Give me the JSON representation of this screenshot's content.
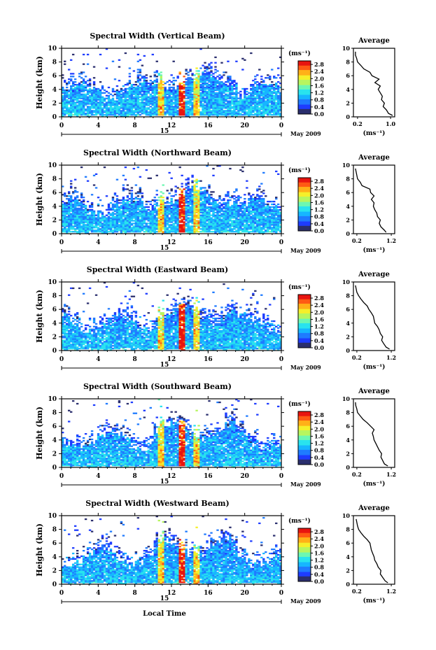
{
  "colors": {
    "colormap": [
      "#2b2f6e",
      "#1e3cff",
      "#1f7bff",
      "#17b6ff",
      "#29e3ee",
      "#6cf7b2",
      "#b7f55f",
      "#f5ef2a",
      "#ffb018",
      "#ff5a14",
      "#e8150f"
    ],
    "line": "#000000",
    "background": "#ffffff"
  },
  "panels_common": {
    "ylabel": "Height (km)",
    "x_ticks": [
      "0",
      "4",
      "8",
      "12",
      "16",
      "20",
      "0"
    ],
    "day_label": "15",
    "date_label": "May 2009",
    "unit_label": "(ms⁻¹)",
    "colorbar_ticks": [
      "2.8",
      "2.4",
      "2.0",
      "1.6",
      "1.2",
      "0.8",
      "0.4",
      "0.0"
    ],
    "avg_title": "Average",
    "avg_xlabel": "(ms⁻¹)"
  },
  "xlabel_bottom": "Local Time",
  "chart_data": [
    {
      "type": "heatmap",
      "title": "Spectral Width (Vertical Beam)",
      "ylabel": "Height (km)",
      "xlim": [
        0,
        24
      ],
      "ylim": [
        0,
        10
      ],
      "y_ticks": [
        "0",
        "2",
        "4",
        "6",
        "8",
        "10"
      ],
      "colorbar": {
        "label": "(ms⁻¹)",
        "range": [
          0.0,
          3.0
        ],
        "ticks": [
          "2.8",
          "2.4",
          "2.0",
          "1.6",
          "1.2",
          "0.8",
          "0.4",
          "0.0"
        ]
      },
      "average_profile": {
        "title": "Average",
        "xlabel": "(ms⁻¹)",
        "x_ticks": [
          "0.2",
          "1.0"
        ],
        "xlim": [
          0.1,
          1.1
        ],
        "y_ticks": [
          "0",
          "2",
          "4",
          "6",
          "8",
          "10"
        ],
        "height_km": [
          0.2,
          0.5,
          1,
          1.5,
          2,
          2.5,
          3,
          3.5,
          4,
          4.5,
          5,
          5.5,
          6,
          6.5,
          7,
          7.5,
          8,
          8.5,
          9,
          9.5
        ],
        "values": [
          1.05,
          0.95,
          0.9,
          0.82,
          0.85,
          0.78,
          0.8,
          0.75,
          0.7,
          0.75,
          0.62,
          0.72,
          0.55,
          0.5,
          0.35,
          0.28,
          0.2,
          0.18,
          0.15,
          0.15
        ]
      }
    },
    {
      "type": "heatmap",
      "title": "Spectral Width (Northward Beam)",
      "ylabel": "Height (km)",
      "xlim": [
        0,
        24
      ],
      "ylim": [
        0,
        10
      ],
      "y_ticks": [
        "0",
        "2",
        "4",
        "6",
        "8",
        "10"
      ],
      "colorbar": {
        "label": "(ms⁻¹)",
        "range": [
          0.0,
          3.0
        ],
        "ticks": [
          "2.8",
          "2.4",
          "2.0",
          "1.6",
          "1.2",
          "0.8",
          "0.4",
          "0.0"
        ]
      },
      "average_profile": {
        "title": "Average",
        "xlabel": "(ms⁻¹)",
        "x_ticks": [
          "0.2",
          "1.2"
        ],
        "xlim": [
          0.1,
          1.3
        ],
        "y_ticks": [
          "0",
          "2",
          "4",
          "6",
          "8",
          "10"
        ],
        "height_km": [
          0.2,
          0.5,
          1,
          1.5,
          2,
          2.5,
          3,
          3.5,
          4,
          4.5,
          5,
          5.5,
          6,
          6.5,
          7,
          7.5,
          8,
          8.5,
          9,
          9.5
        ],
        "values": [
          1.05,
          1.0,
          0.9,
          0.85,
          0.88,
          0.8,
          0.78,
          0.72,
          0.68,
          0.7,
          0.62,
          0.7,
          0.6,
          0.58,
          0.35,
          0.3,
          0.22,
          0.2,
          0.18,
          0.16
        ]
      }
    },
    {
      "type": "heatmap",
      "title": "Spectral Width (Eastward Beam)",
      "ylabel": "Height (km)",
      "xlim": [
        0,
        24
      ],
      "ylim": [
        0,
        10
      ],
      "y_ticks": [
        "0",
        "2",
        "4",
        "6",
        "8",
        "10"
      ],
      "colorbar": {
        "label": "(ms⁻¹)",
        "range": [
          0.0,
          3.0
        ],
        "ticks": [
          "2.8",
          "2.4",
          "2.0",
          "1.6",
          "1.2",
          "0.8",
          "0.4",
          "0.0"
        ]
      },
      "average_profile": {
        "title": "Average",
        "xlabel": "(ms⁻¹)",
        "x_ticks": [
          "0.2",
          "1.2"
        ],
        "xlim": [
          0.1,
          1.3
        ],
        "y_ticks": [
          "0",
          "2",
          "4",
          "6",
          "8",
          "10"
        ],
        "height_km": [
          0.2,
          0.5,
          1,
          1.5,
          2,
          2.5,
          3,
          3.5,
          4,
          4.5,
          5,
          5.5,
          6,
          6.5,
          7,
          7.5,
          8,
          8.5,
          9,
          9.5
        ],
        "values": [
          1.15,
          1.05,
          0.98,
          0.92,
          0.95,
          0.88,
          0.85,
          0.8,
          0.72,
          0.7,
          0.68,
          0.62,
          0.55,
          0.5,
          0.4,
          0.32,
          0.25,
          0.2,
          0.18,
          0.16
        ]
      }
    },
    {
      "type": "heatmap",
      "title": "Spectral Width (Southward Beam)",
      "ylabel": "Height (km)",
      "xlim": [
        0,
        24
      ],
      "ylim": [
        0,
        10
      ],
      "y_ticks": [
        "0",
        "2",
        "4",
        "6",
        "8",
        "10"
      ],
      "colorbar": {
        "label": "(ms⁻¹)",
        "range": [
          0.0,
          3.0
        ],
        "ticks": [
          "2.8",
          "2.4",
          "2.0",
          "1.6",
          "1.2",
          "0.8",
          "0.4",
          "0.0"
        ]
      },
      "average_profile": {
        "title": "Average",
        "xlabel": "(ms⁻¹)",
        "x_ticks": [
          "0.2",
          "1.2"
        ],
        "xlim": [
          0.1,
          1.3
        ],
        "y_ticks": [
          "0",
          "2",
          "4",
          "6",
          "8",
          "10"
        ],
        "height_km": [
          0.2,
          0.5,
          1,
          1.5,
          2,
          2.5,
          3,
          3.5,
          4,
          4.5,
          5,
          5.5,
          6,
          6.5,
          7,
          7.5,
          8,
          8.5,
          9,
          9.5
        ],
        "values": [
          1.1,
          1.0,
          0.95,
          0.9,
          0.92,
          0.85,
          0.8,
          0.75,
          0.7,
          0.68,
          0.65,
          0.7,
          0.6,
          0.5,
          0.38,
          0.3,
          0.22,
          0.2,
          0.17,
          0.16
        ]
      }
    },
    {
      "type": "heatmap",
      "title": "Spectral Width (Westward Beam)",
      "ylabel": "Height (km)",
      "xlim": [
        0,
        24
      ],
      "ylim": [
        0,
        10
      ],
      "y_ticks": [
        "0",
        "2",
        "4",
        "6",
        "8",
        "10"
      ],
      "colorbar": {
        "label": "(ms⁻¹)",
        "range": [
          0.0,
          3.0
        ],
        "ticks": [
          "2.8",
          "2.4",
          "2.0",
          "1.6",
          "1.2",
          "0.8",
          "0.4",
          "0.0"
        ]
      },
      "average_profile": {
        "title": "Average",
        "xlabel": "(ms⁻¹)",
        "x_ticks": [
          "0.2",
          "1.2"
        ],
        "xlim": [
          0.1,
          1.3
        ],
        "y_ticks": [
          "0",
          "2",
          "4",
          "6",
          "8",
          "10"
        ],
        "height_km": [
          0.2,
          0.5,
          1,
          1.5,
          2,
          2.5,
          3,
          3.5,
          4,
          4.5,
          5,
          5.5,
          6,
          6.5,
          7,
          7.5,
          8,
          8.5,
          9,
          9.5
        ],
        "values": [
          1.1,
          1.02,
          0.95,
          0.88,
          0.9,
          0.82,
          0.78,
          0.72,
          0.7,
          0.66,
          0.62,
          0.6,
          0.58,
          0.5,
          0.4,
          0.32,
          0.25,
          0.22,
          0.2,
          0.18
        ]
      }
    }
  ]
}
